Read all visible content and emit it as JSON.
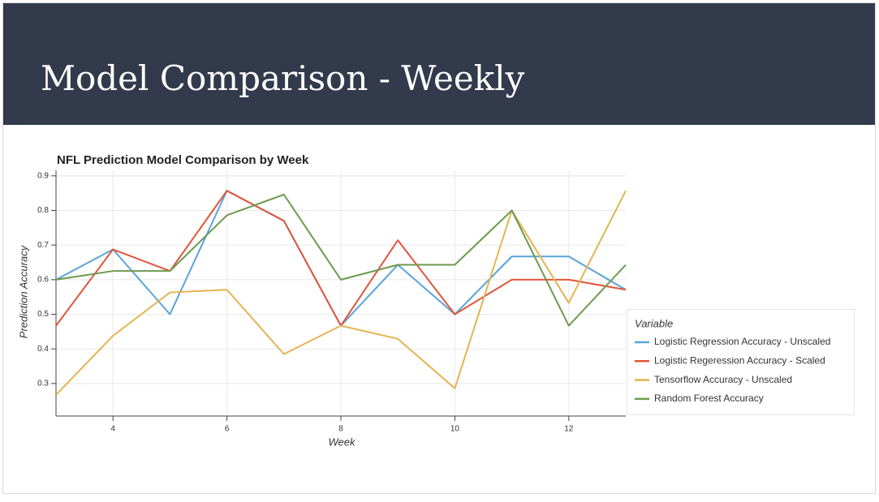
{
  "slide_title": "Model Comparison - Weekly",
  "chart_data": {
    "type": "line",
    "title": "NFL Prediction Model Comparison by Week",
    "x_label": "Week",
    "y_label": "Prediction Accuracy",
    "x": [
      3,
      4,
      5,
      6,
      7,
      8,
      9,
      10,
      11,
      12,
      13
    ],
    "xlim": [
      3,
      13
    ],
    "xticks": [
      4,
      6,
      8,
      10,
      12
    ],
    "ylim": [
      0.206,
      0.916
    ],
    "yticks": [
      0.3,
      0.4,
      0.5,
      0.6,
      0.7,
      0.8,
      0.9
    ],
    "grid": true,
    "legend_title": "Variable",
    "legend_position": "right",
    "series": [
      {
        "name": "Logistic Regression Accuracy - Unscaled",
        "color": "#5ba3d9",
        "values": [
          0.6,
          0.6875,
          0.5,
          0.857,
          0.77,
          0.467,
          0.643,
          0.5,
          0.667,
          0.667,
          0.571
        ]
      },
      {
        "name": "Logistic Regeression Accuracy - Scaled",
        "color": "#e1553c",
        "values": [
          0.467,
          0.6875,
          0.625,
          0.857,
          0.77,
          0.467,
          0.714,
          0.5,
          0.6,
          0.6,
          0.571
        ]
      },
      {
        "name": "Tensorflow Accuracy - Unscaled",
        "color": "#e5b450",
        "values": [
          0.267,
          0.438,
          0.563,
          0.571,
          0.385,
          0.467,
          0.429,
          0.286,
          0.8,
          0.533,
          0.857
        ]
      },
      {
        "name": "Random Forest Accuracy",
        "color": "#6e9a4e",
        "values": [
          0.6,
          0.625,
          0.625,
          0.786,
          0.846,
          0.6,
          0.643,
          0.643,
          0.8,
          0.467,
          0.643
        ]
      }
    ]
  }
}
